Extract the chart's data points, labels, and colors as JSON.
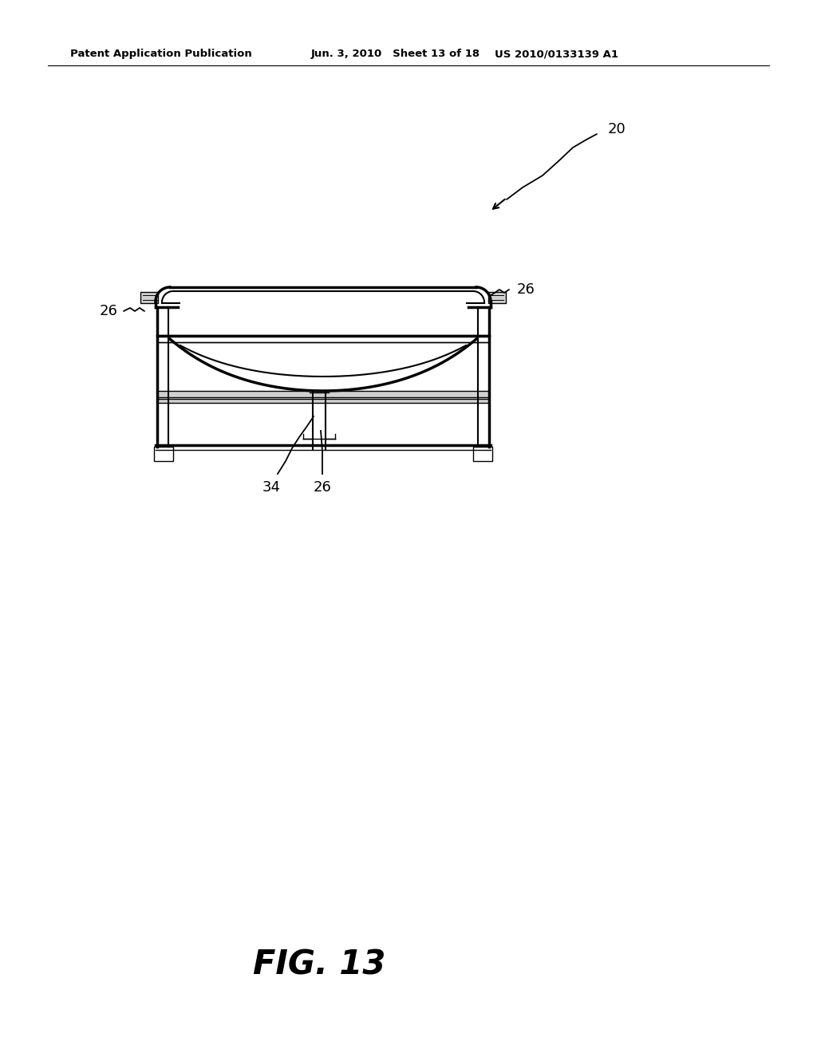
{
  "bg_color": "#ffffff",
  "line_color": "#000000",
  "gray_fill": "#d0d0d0",
  "header_left": "Patent Application Publication",
  "header_mid": "Jun. 3, 2010   Sheet 13 of 18",
  "header_right": "US 2010/0133139 A1",
  "fig_label": "FIG. 13",
  "label_20": "20",
  "label_26": "26",
  "label_34": "34"
}
